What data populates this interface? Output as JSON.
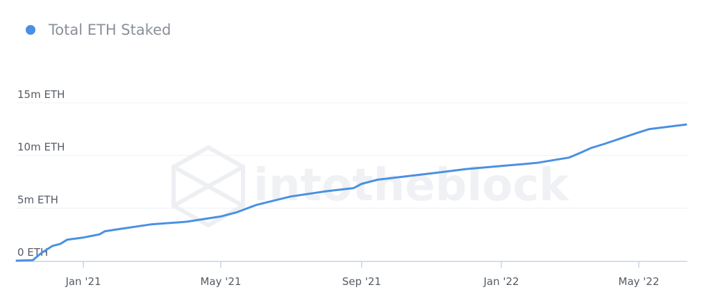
{
  "chart_data": {
    "type": "line",
    "title": "",
    "xlabel": "",
    "ylabel": "",
    "legend": {
      "placement": "top-left",
      "entries": [
        "Total ETH Staked"
      ]
    },
    "grid": true,
    "ylim": [
      0,
      15000000
    ],
    "y_ticks": [
      {
        "value": 0,
        "label": "0 ETH"
      },
      {
        "value": 5000000,
        "label": "5m ETH"
      },
      {
        "value": 10000000,
        "label": "10m ETH"
      },
      {
        "value": 15000000,
        "label": "15m ETH"
      }
    ],
    "x_ticks": [
      {
        "value": "2021-01-01",
        "label": "Jan '21"
      },
      {
        "value": "2021-05-01",
        "label": "May '21"
      },
      {
        "value": "2021-09-01",
        "label": "Sep '21"
      },
      {
        "value": "2022-01-01",
        "label": "Jan '22"
      },
      {
        "value": "2022-05-01",
        "label": "May '22"
      }
    ],
    "series": [
      {
        "name": "Total ETH Staked",
        "color": "#4a90e2",
        "points": [
          [
            "2020-11-03",
            0
          ],
          [
            "2020-11-18",
            50000
          ],
          [
            "2020-11-25",
            700000
          ],
          [
            "2020-12-05",
            1400000
          ],
          [
            "2020-12-12",
            1600000
          ],
          [
            "2020-12-18",
            2000000
          ],
          [
            "2021-01-01",
            2200000
          ],
          [
            "2021-01-15",
            2500000
          ],
          [
            "2021-01-20",
            2800000
          ],
          [
            "2021-02-01",
            3000000
          ],
          [
            "2021-03-01",
            3450000
          ],
          [
            "2021-04-01",
            3700000
          ],
          [
            "2021-05-01",
            4200000
          ],
          [
            "2021-05-15",
            4600000
          ],
          [
            "2021-06-01",
            5300000
          ],
          [
            "2021-07-01",
            6100000
          ],
          [
            "2021-08-01",
            6600000
          ],
          [
            "2021-08-25",
            6900000
          ],
          [
            "2021-09-01",
            7300000
          ],
          [
            "2021-09-15",
            7700000
          ],
          [
            "2021-10-01",
            7900000
          ],
          [
            "2021-11-01",
            8300000
          ],
          [
            "2021-12-01",
            8700000
          ],
          [
            "2022-01-01",
            9000000
          ],
          [
            "2022-02-01",
            9300000
          ],
          [
            "2022-03-01",
            9800000
          ],
          [
            "2022-03-12",
            10300000
          ],
          [
            "2022-03-20",
            10700000
          ],
          [
            "2022-04-01",
            11100000
          ],
          [
            "2022-04-20",
            11800000
          ],
          [
            "2022-05-01",
            12200000
          ],
          [
            "2022-05-10",
            12500000
          ],
          [
            "2022-06-01",
            12800000
          ],
          [
            "2022-06-12",
            12950000
          ]
        ]
      }
    ]
  },
  "watermark": "intotheblock"
}
